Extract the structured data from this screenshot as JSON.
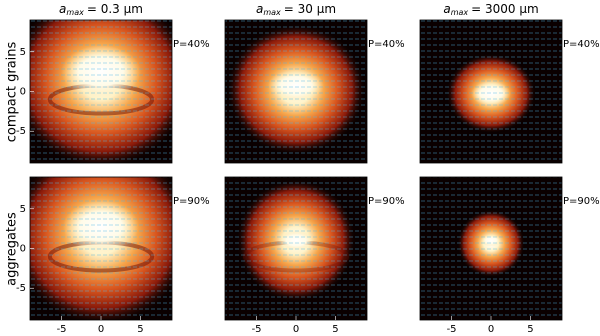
{
  "row_labels": [
    "compact grains",
    "aggregates"
  ],
  "chart_data": [
    {
      "type": "heatmap",
      "title": {
        "symbol": "a",
        "subscript": "max",
        "text": "= 0.3 μm"
      },
      "annotation": "P=40%",
      "xlim": [
        -9,
        9
      ],
      "ylim": [
        -9,
        9
      ],
      "yticks": [
        5,
        0,
        -5
      ]
    },
    {
      "type": "heatmap",
      "title": {
        "symbol": "a",
        "subscript": "max",
        "text": "= 30 μm"
      },
      "annotation": "P=40%",
      "xlim": [
        -9,
        9
      ],
      "ylim": [
        -9,
        9
      ]
    },
    {
      "type": "heatmap",
      "title": {
        "symbol": "a",
        "subscript": "max",
        "text": "= 3000 μm"
      },
      "annotation": "P=40%",
      "xlim": [
        -9,
        9
      ],
      "ylim": [
        -9,
        9
      ]
    },
    {
      "type": "heatmap",
      "annotation": "P=90%",
      "xlim": [
        -9,
        9
      ],
      "ylim": [
        -9,
        9
      ],
      "xticks": [
        -5,
        0,
        5
      ],
      "yticks": [
        5,
        0,
        -5
      ]
    },
    {
      "type": "heatmap",
      "annotation": "P=90%",
      "xlim": [
        -9,
        9
      ],
      "ylim": [
        -9,
        9
      ],
      "xticks": [
        -5,
        0,
        5
      ]
    },
    {
      "type": "heatmap",
      "annotation": "P=90%",
      "xlim": [
        -9,
        9
      ],
      "ylim": [
        -9,
        9
      ],
      "xticks": [
        -5,
        0,
        5
      ]
    }
  ]
}
